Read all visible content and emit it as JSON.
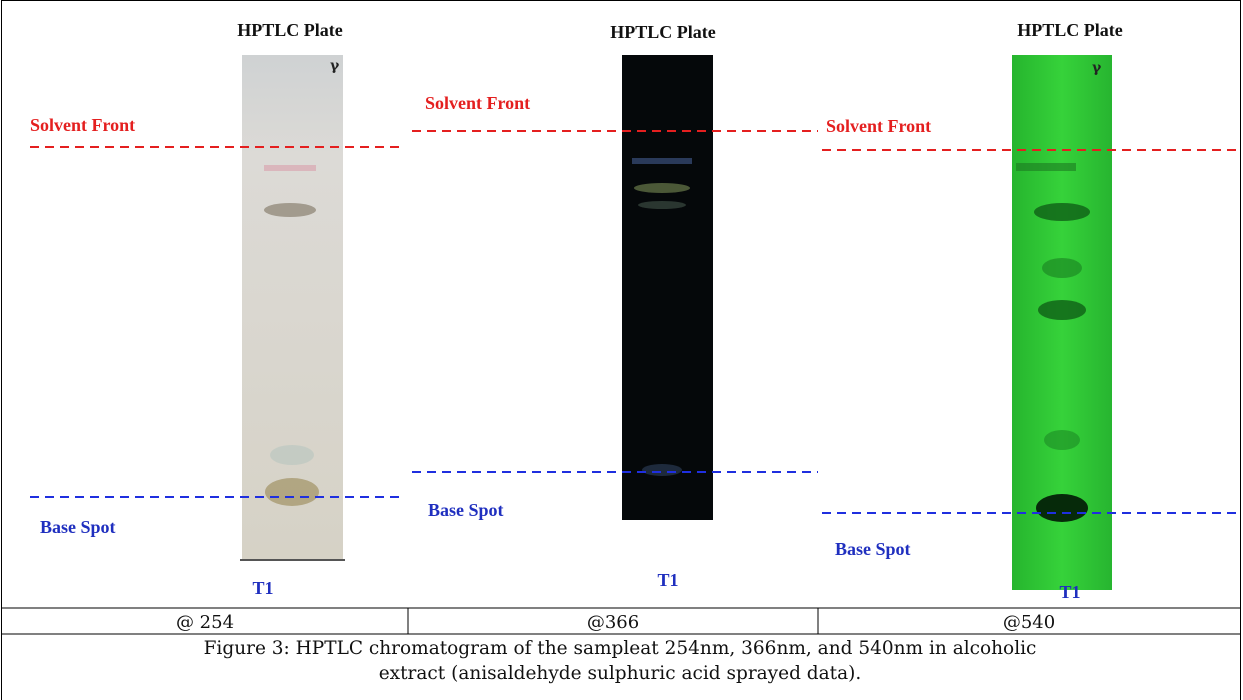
{
  "panels": [
    {
      "title": "HPTLC Plate",
      "mark": "γ",
      "solvent_front": "Solvent Front",
      "base_spot": "Base Spot",
      "track": "T1",
      "wavelength": "@ 254"
    },
    {
      "title": "HPTLC Plate",
      "solvent_front": "Solvent Front",
      "base_spot": "Base Spot",
      "track": "T1",
      "wavelength": "@366"
    },
    {
      "title": "HPTLC Plate",
      "mark": "γ",
      "solvent_front": "Solvent Front",
      "base_spot": "Base Spot",
      "track": "T1",
      "wavelength": "@540"
    }
  ],
  "caption": "Figure 3: HPTLC chromatogram of the sampleat 254nm, 366nm, and 540nm in alcoholic extract (anisaldehyde sulphuric acid sprayed data)."
}
